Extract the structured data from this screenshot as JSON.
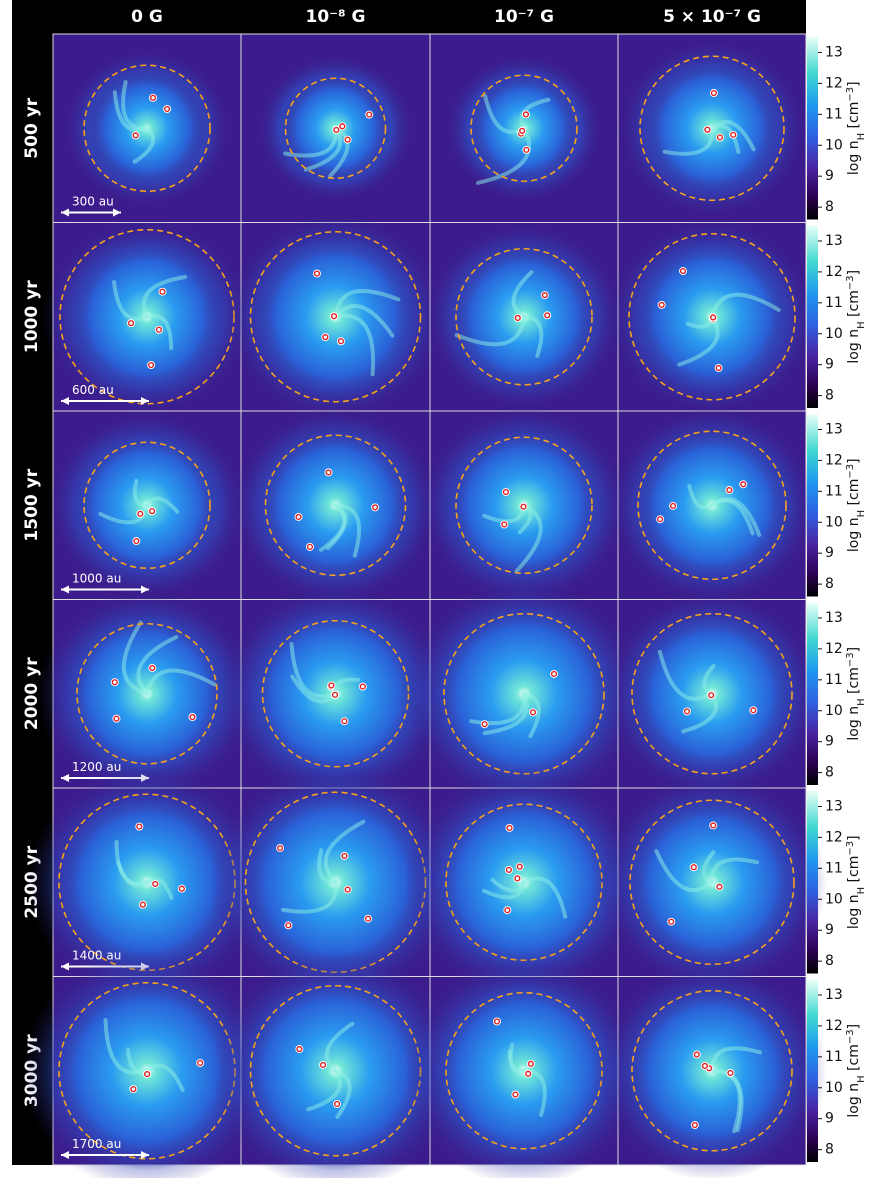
{
  "columns": [
    "0 G",
    "10⁻⁸ G",
    "10⁻⁷ G",
    "5 × 10⁻⁷ G"
  ],
  "rows": [
    {
      "label": "500 yr",
      "scale": "300 au"
    },
    {
      "label": "1000 yr",
      "scale": "600 au"
    },
    {
      "label": "1500 yr",
      "scale": "1000 au"
    },
    {
      "label": "2000 yr",
      "scale": "1200 au"
    },
    {
      "label": "2500 yr",
      "scale": "1400 au"
    },
    {
      "label": "3000 yr",
      "scale": "1700 au"
    }
  ],
  "colorbar": {
    "range": [
      7.6,
      13.5
    ],
    "ticks": [
      8,
      9,
      10,
      11,
      12,
      13
    ],
    "label": [
      "log n",
      "H",
      " [cm",
      "−3",
      "]"
    ]
  }
}
